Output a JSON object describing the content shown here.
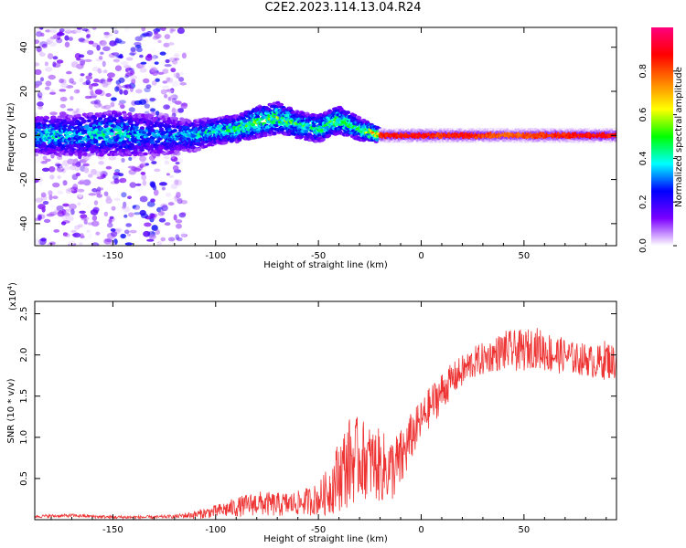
{
  "title": "C2E2.2023.114.13.04.R24",
  "colors": {
    "series_line": "#ee3333",
    "axis": "#000000",
    "colormap": [
      "#ffffff",
      "#7b00ff",
      "#0000ff",
      "#00ffff",
      "#00ff00",
      "#ffff00",
      "#ff8000",
      "#ff0000",
      "#ff007f"
    ]
  },
  "chart_data": [
    {
      "type": "heatmap",
      "title": "",
      "xlabel": "Height of straight line (km)",
      "ylabel": "Frequency (Hz)",
      "xlim": [
        -188,
        95
      ],
      "ylim": [
        -50,
        49
      ],
      "xticks": [
        -150,
        -100,
        -50,
        0,
        50
      ],
      "xtick_labels": [
        "-150",
        "-100",
        "-50",
        "0",
        "50"
      ],
      "yticks": [
        -40,
        -20,
        0,
        20,
        40
      ],
      "ytick_labels": [
        "-40",
        "-20",
        "0",
        "20",
        "40"
      ],
      "colorbar": {
        "label": "Normalized spectral amplitude",
        "range": [
          0,
          1
        ],
        "ticks": [
          0.0,
          0.2,
          0.4,
          0.6,
          0.8
        ],
        "tick_labels": [
          "0.0",
          "0.2",
          "0.4",
          "0.6",
          "0.8"
        ]
      },
      "ridge": {
        "x": [
          -188,
          -170,
          -150,
          -130,
          -110,
          -100,
          -90,
          -80,
          -70,
          -60,
          -50,
          -40,
          -30,
          -20,
          -10,
          0,
          10,
          20,
          40,
          60,
          80,
          95
        ],
        "freq": [
          0,
          0,
          1,
          0,
          0,
          2,
          3,
          6,
          8,
          5,
          3,
          7,
          3,
          0,
          0,
          0,
          0,
          0,
          0,
          0,
          0,
          0
        ],
        "amplitude": [
          0.45,
          0.4,
          0.45,
          0.35,
          0.4,
          0.45,
          0.5,
          0.55,
          0.55,
          0.5,
          0.5,
          0.55,
          0.5,
          0.85,
          0.9,
          0.9,
          0.85,
          0.9,
          0.8,
          0.85,
          0.9,
          0.9
        ],
        "spread_hz": [
          8,
          9,
          10,
          9,
          7,
          6,
          6,
          7,
          7,
          6,
          6,
          6,
          5,
          3,
          3,
          3,
          3,
          3,
          3,
          3,
          3,
          3
        ]
      },
      "scatter_noise": {
        "x_range": [
          -188,
          -115
        ],
        "freq_range": [
          -50,
          49
        ],
        "amplitude_max": 0.3
      }
    },
    {
      "type": "line",
      "title": "",
      "xlabel": "Height of straight line (km)",
      "ylabel": "SNR (10 * v/v)",
      "multiplier_label": "(x10",
      "multiplier_exponent": "4",
      "multiplier_close": ")",
      "xlim": [
        -188,
        95
      ],
      "ylim": [
        0,
        2.65
      ],
      "xticks": [
        -150,
        -100,
        -50,
        0,
        50
      ],
      "xtick_labels": [
        "-150",
        "-100",
        "-50",
        "0",
        "50"
      ],
      "yticks": [
        0.5,
        1.0,
        1.5,
        2.0,
        2.5
      ],
      "ytick_labels": [
        "0.5",
        "1.0",
        "1.5",
        "2.0",
        "2.5"
      ],
      "series": [
        {
          "name": "SNR",
          "x": [
            -188,
            -170,
            -150,
            -130,
            -120,
            -110,
            -100,
            -90,
            -80,
            -70,
            -60,
            -50,
            -45,
            -40,
            -35,
            -30,
            -25,
            -20,
            -15,
            -10,
            -5,
            0,
            5,
            10,
            15,
            20,
            25,
            30,
            35,
            40,
            45,
            50,
            55,
            60,
            65,
            70,
            75,
            80,
            85,
            90,
            95
          ],
          "mean": [
            0.04,
            0.05,
            0.03,
            0.03,
            0.04,
            0.06,
            0.1,
            0.15,
            0.2,
            0.18,
            0.2,
            0.25,
            0.35,
            0.55,
            0.7,
            0.75,
            0.7,
            0.65,
            0.6,
            0.7,
            1.0,
            1.2,
            1.4,
            1.55,
            1.7,
            1.8,
            1.9,
            1.95,
            2.0,
            2.05,
            2.05,
            2.05,
            2.1,
            2.05,
            2.0,
            2.0,
            1.95,
            1.95,
            1.9,
            1.95,
            1.9
          ],
          "spread": [
            0.02,
            0.02,
            0.02,
            0.02,
            0.02,
            0.05,
            0.08,
            0.12,
            0.15,
            0.15,
            0.15,
            0.2,
            0.3,
            0.45,
            0.55,
            0.5,
            0.45,
            0.45,
            0.4,
            0.4,
            0.3,
            0.25,
            0.25,
            0.25,
            0.2,
            0.2,
            0.2,
            0.2,
            0.2,
            0.25,
            0.25,
            0.25,
            0.25,
            0.25,
            0.25,
            0.2,
            0.2,
            0.2,
            0.2,
            0.25,
            0.2
          ]
        }
      ]
    }
  ]
}
